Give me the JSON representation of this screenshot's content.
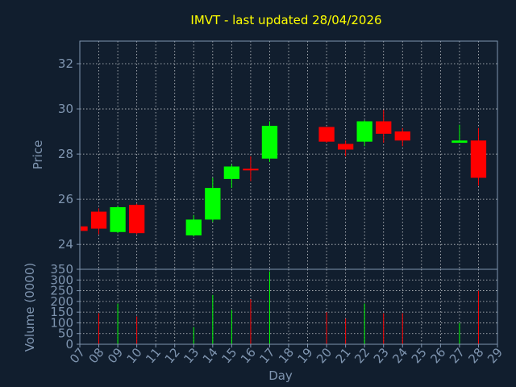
{
  "chart_data": {
    "type": "candlestick",
    "title": "IMVT - last updated 28/04/2026",
    "xlabel": "Day",
    "ylabel_price": "Price",
    "ylabel_volume": "Volume (0000)",
    "x_ticks": [
      "07",
      "08",
      "09",
      "10",
      "11",
      "12",
      "13",
      "14",
      "15",
      "16",
      "17",
      "18",
      "19",
      "20",
      "21",
      "22",
      "23",
      "24",
      "25",
      "26",
      "27",
      "28",
      "29"
    ],
    "xlim": [
      7,
      29
    ],
    "price_ylim": [
      22.9,
      33
    ],
    "price_ticks": [
      24,
      26,
      28,
      30,
      32
    ],
    "volume_ylim": [
      0,
      350
    ],
    "volume_ticks": [
      0,
      50,
      100,
      150,
      200,
      250,
      300,
      350
    ],
    "grid": true,
    "colors": {
      "up": "#00ff00",
      "down": "#ff0000",
      "title": "#ffff00",
      "axis": "#7f95b0",
      "background": "#111e2e"
    },
    "candles": [
      {
        "day": 7,
        "open": 24.8,
        "high": 24.85,
        "low": 24.55,
        "close": 24.6,
        "volume": 0
      },
      {
        "day": 8,
        "open": 25.45,
        "high": 25.6,
        "low": 24.45,
        "close": 24.7,
        "volume": 145
      },
      {
        "day": 9,
        "open": 24.55,
        "high": 25.7,
        "low": 24.5,
        "close": 25.65,
        "volume": 190
      },
      {
        "day": 10,
        "open": 25.75,
        "high": 25.8,
        "low": 24.45,
        "close": 24.5,
        "volume": 130
      },
      {
        "day": 13,
        "open": 24.4,
        "high": 25.3,
        "low": 24.35,
        "close": 25.1,
        "volume": 80
      },
      {
        "day": 14,
        "open": 25.1,
        "high": 26.95,
        "low": 25.0,
        "close": 26.5,
        "volume": 230
      },
      {
        "day": 15,
        "open": 26.9,
        "high": 27.55,
        "low": 26.5,
        "close": 27.45,
        "volume": 160
      },
      {
        "day": 16,
        "open": 27.35,
        "high": 27.9,
        "low": 26.8,
        "close": 27.3,
        "volume": 210
      },
      {
        "day": 17,
        "open": 27.8,
        "high": 29.45,
        "low": 27.65,
        "close": 29.25,
        "volume": 340
      },
      {
        "day": 20,
        "open": 29.2,
        "high": 29.2,
        "low": 28.5,
        "close": 28.55,
        "volume": 150
      },
      {
        "day": 21,
        "open": 28.45,
        "high": 28.6,
        "low": 27.9,
        "close": 28.2,
        "volume": 120
      },
      {
        "day": 22,
        "open": 28.55,
        "high": 29.5,
        "low": 28.35,
        "close": 29.45,
        "volume": 190
      },
      {
        "day": 23,
        "open": 29.45,
        "high": 29.95,
        "low": 28.5,
        "close": 28.9,
        "volume": 145
      },
      {
        "day": 24,
        "open": 29.0,
        "high": 29.15,
        "low": 28.35,
        "close": 28.6,
        "volume": 145
      },
      {
        "day": 27,
        "open": 28.5,
        "high": 29.3,
        "low": 28.5,
        "close": 28.6,
        "volume": 100
      },
      {
        "day": 28,
        "open": 28.6,
        "high": 29.15,
        "low": 26.6,
        "close": 26.95,
        "volume": 250
      }
    ]
  }
}
